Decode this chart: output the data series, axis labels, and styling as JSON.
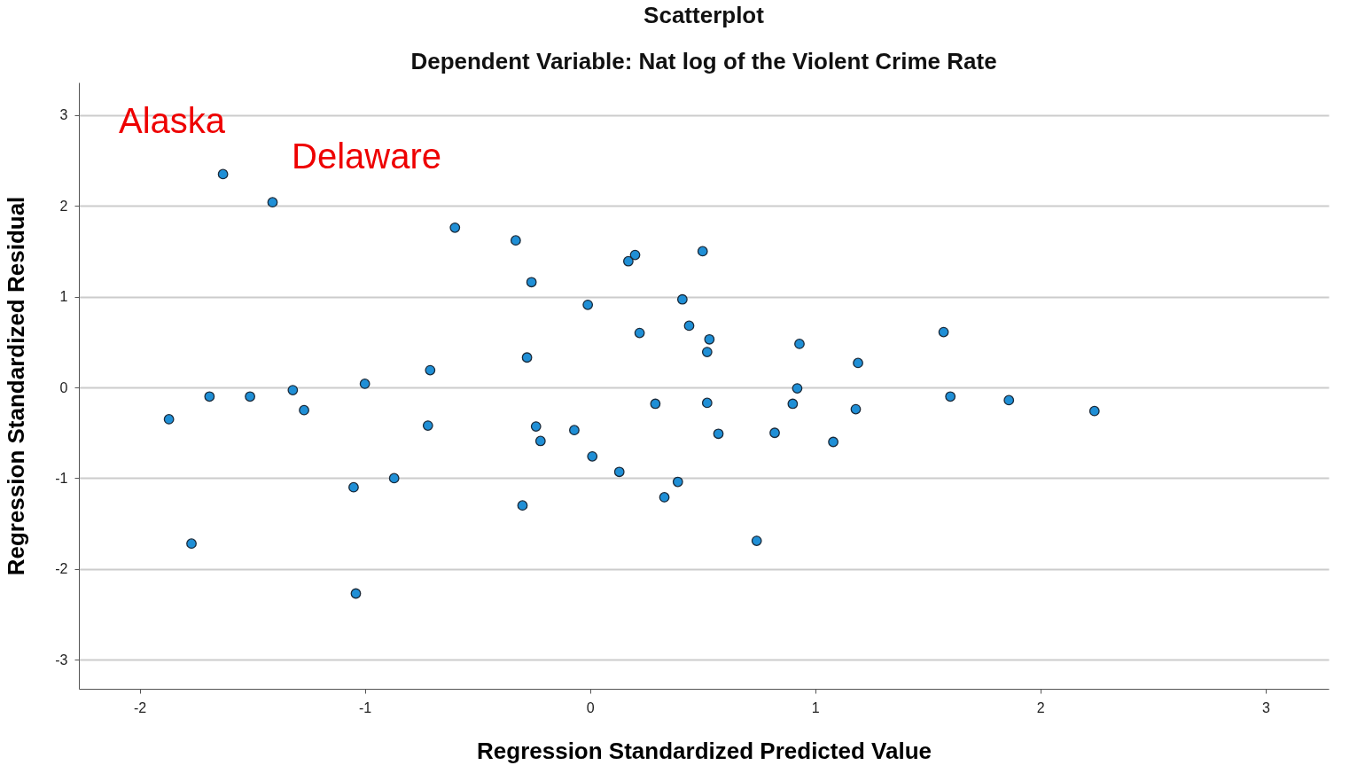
{
  "chart_data": {
    "type": "scatter",
    "title": "Scatterplot",
    "subtitle": "Dependent Variable: Nat log of the Violent Crime Rate",
    "xlabel": "Regression Standardized Predicted Value",
    "ylabel": "Regression Standardized Residual",
    "x": [
      -1.63,
      -1.41,
      -0.6,
      -0.33,
      0.2,
      0.17,
      0.5,
      -0.26,
      -0.01,
      0.41,
      0.44,
      0.22,
      0.53,
      0.52,
      0.93,
      1.57,
      1.19,
      -0.28,
      -0.71,
      -1.0,
      -1.32,
      -1.51,
      -1.69,
      -1.87,
      -1.27,
      0.92,
      0.9,
      1.18,
      1.6,
      1.86,
      2.24,
      0.29,
      0.52,
      -0.72,
      -0.24,
      -0.22,
      -0.07,
      0.57,
      0.82,
      1.08,
      0.01,
      0.13,
      0.39,
      0.33,
      -0.3,
      -0.87,
      -1.05,
      -1.77,
      0.74,
      -1.04
    ],
    "series": [
      {
        "color": "#1f8fd6",
        "values": [
          2.35,
          2.04,
          1.76,
          1.62,
          1.46,
          1.39,
          1.5,
          1.16,
          0.91,
          0.97,
          0.68,
          0.6,
          0.53,
          0.39,
          0.48,
          0.61,
          0.27,
          0.33,
          0.19,
          0.04,
          -0.03,
          -0.1,
          -0.1,
          -0.35,
          -0.25,
          -0.01,
          -0.18,
          -0.24,
          -0.1,
          -0.14,
          -0.26,
          -0.18,
          -0.17,
          -0.42,
          -0.43,
          -0.59,
          -0.47,
          -0.51,
          -0.5,
          -0.6,
          -0.76,
          -0.93,
          -1.04,
          -1.21,
          -1.3,
          -1.0,
          -1.1,
          -1.72,
          -1.69,
          -2.27
        ]
      }
    ],
    "annotations": [
      "Alaska",
      "Delaware"
    ],
    "xlim": [
      -2.27,
      3.28
    ],
    "ylim": [
      -3.32,
      3.36
    ],
    "xticks": [
      -2,
      -1,
      0,
      1,
      2,
      3
    ],
    "yticks": [
      -3,
      -2,
      -1,
      0,
      1,
      2,
      3
    ],
    "grid": "y"
  }
}
